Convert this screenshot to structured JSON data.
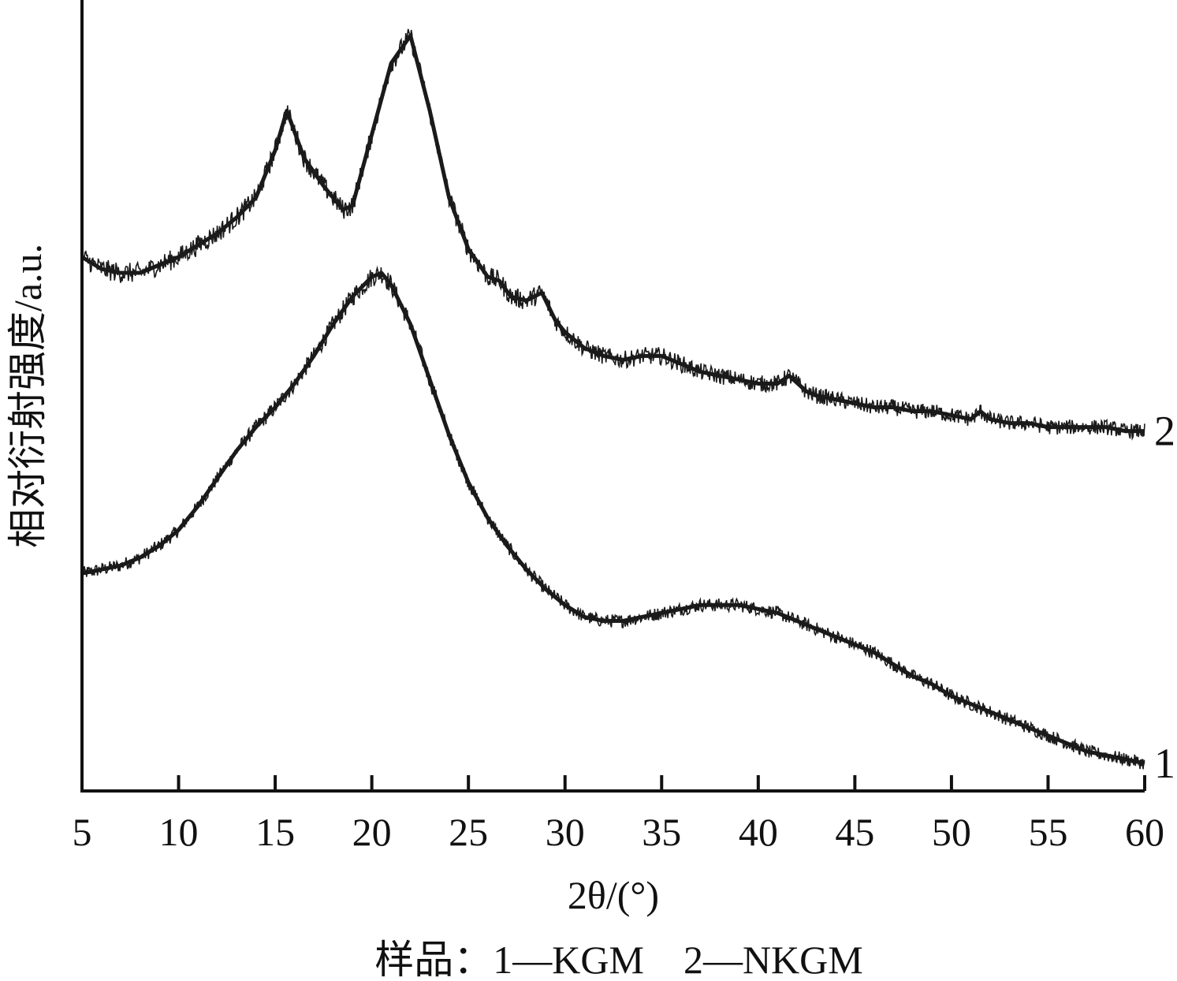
{
  "chart_data": {
    "type": "line",
    "title": "",
    "xlabel": "2θ/(°)",
    "ylabel": "相对衍射强度/a.u.",
    "caption": "样品：1—KGM　2—NKGM",
    "xlim": [
      5,
      60
    ],
    "ylim": [
      0,
      2.0
    ],
    "xticks": [
      5,
      10,
      15,
      20,
      25,
      30,
      35,
      40,
      45,
      50,
      55,
      60
    ],
    "xtick_labels": [
      "5",
      "10",
      "15",
      "20",
      "25",
      "30",
      "35",
      "40",
      "45",
      "50",
      "55",
      "60"
    ],
    "grid": false,
    "line_color": "#1a1a1a",
    "series": [
      {
        "name": "1",
        "x": [
          5,
          6,
          7,
          8,
          9,
          10,
          11,
          12,
          13,
          14,
          15,
          16,
          17,
          18,
          19,
          20,
          20.5,
          21,
          22,
          23,
          24,
          25,
          26,
          27,
          28,
          29,
          30,
          31,
          32,
          33,
          34,
          35,
          36,
          37,
          38,
          39,
          40,
          41,
          42,
          43,
          44,
          45,
          46,
          47,
          48,
          49,
          50,
          51,
          52,
          53,
          54,
          55,
          56,
          57,
          58,
          59,
          60
        ],
        "values": [
          0.55,
          0.56,
          0.57,
          0.59,
          0.62,
          0.66,
          0.72,
          0.79,
          0.86,
          0.92,
          0.97,
          1.03,
          1.1,
          1.18,
          1.25,
          1.3,
          1.31,
          1.28,
          1.18,
          1.04,
          0.9,
          0.78,
          0.69,
          0.62,
          0.56,
          0.51,
          0.47,
          0.44,
          0.43,
          0.43,
          0.44,
          0.45,
          0.46,
          0.47,
          0.47,
          0.47,
          0.46,
          0.45,
          0.43,
          0.41,
          0.39,
          0.37,
          0.35,
          0.32,
          0.29,
          0.27,
          0.24,
          0.22,
          0.2,
          0.18,
          0.16,
          0.14,
          0.12,
          0.1,
          0.09,
          0.08,
          0.07
        ]
      },
      {
        "name": "2",
        "x": [
          5,
          6,
          7,
          8,
          9,
          10,
          11,
          12,
          13,
          14,
          15,
          15.6,
          16.5,
          17.5,
          18.5,
          19,
          20,
          21,
          22,
          23,
          24,
          25,
          26,
          26.6,
          27.2,
          28,
          28.8,
          29.5,
          30,
          31,
          32,
          33,
          34,
          35,
          36,
          37,
          38,
          39,
          40,
          41,
          41.6,
          42.5,
          43,
          44,
          45,
          46,
          47,
          48,
          49,
          50,
          51,
          51.5,
          52,
          53,
          54,
          55,
          56,
          57,
          58,
          59,
          60
        ],
        "values": [
          1.35,
          1.32,
          1.31,
          1.31,
          1.33,
          1.35,
          1.38,
          1.41,
          1.45,
          1.5,
          1.62,
          1.72,
          1.6,
          1.53,
          1.47,
          1.48,
          1.66,
          1.84,
          1.91,
          1.72,
          1.5,
          1.37,
          1.3,
          1.29,
          1.25,
          1.24,
          1.26,
          1.19,
          1.16,
          1.12,
          1.1,
          1.09,
          1.1,
          1.1,
          1.08,
          1.06,
          1.05,
          1.04,
          1.03,
          1.03,
          1.05,
          1.01,
          1.0,
          0.99,
          0.98,
          0.97,
          0.97,
          0.96,
          0.96,
          0.95,
          0.94,
          0.96,
          0.94,
          0.93,
          0.93,
          0.92,
          0.92,
          0.92,
          0.92,
          0.91,
          0.91
        ]
      }
    ]
  }
}
